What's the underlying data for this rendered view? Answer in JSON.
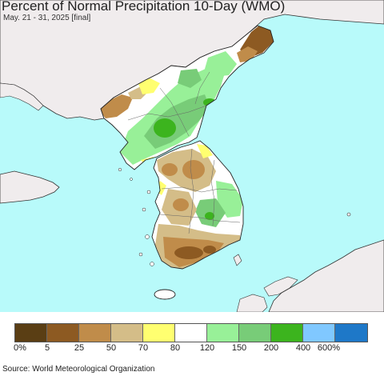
{
  "header": {
    "title": "Percent of Normal Precipitation 10-Day (WMO)",
    "subtitle": "May. 21 - 31, 2025 [final]"
  },
  "map": {
    "sea_color": "#b8fafa",
    "land_color": "#f0eced",
    "border_color": "#1a1a1a"
  },
  "legend": {
    "colors": [
      "#5a3e14",
      "#8d5a22",
      "#c08c4a",
      "#d4bd88",
      "#ffff70",
      "#ffffff",
      "#98f098",
      "#78cc78",
      "#3cb41e",
      "#80c8ff",
      "#1e78c8"
    ],
    "tick_labels": [
      "0%",
      "5",
      "25",
      "50",
      "70",
      "80",
      "120",
      "150",
      "200",
      "400",
      "600%"
    ]
  },
  "footer": {
    "source": "Source: World Meteorological Organization"
  }
}
